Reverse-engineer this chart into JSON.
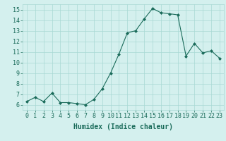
{
  "x": [
    0,
    1,
    2,
    3,
    4,
    5,
    6,
    7,
    8,
    9,
    10,
    11,
    12,
    13,
    14,
    15,
    16,
    17,
    18,
    19,
    20,
    21,
    22,
    23
  ],
  "y": [
    6.3,
    6.7,
    6.3,
    7.1,
    6.2,
    6.2,
    6.1,
    6.0,
    6.5,
    7.5,
    9.0,
    10.8,
    12.8,
    13.0,
    14.1,
    15.1,
    14.7,
    14.6,
    14.5,
    10.6,
    11.8,
    10.9,
    11.1,
    10.4
  ],
  "xlabel": "Humidex (Indice chaleur)",
  "ylim": [
    5.5,
    15.5
  ],
  "xlim": [
    -0.5,
    23.5
  ],
  "yticks": [
    6,
    7,
    8,
    9,
    10,
    11,
    12,
    13,
    14,
    15
  ],
  "xticks": [
    0,
    1,
    2,
    3,
    4,
    5,
    6,
    7,
    8,
    9,
    10,
    11,
    12,
    13,
    14,
    15,
    16,
    17,
    18,
    19,
    20,
    21,
    22,
    23
  ],
  "line_color": "#1a6b5a",
  "marker_color": "#1a6b5a",
  "bg_color": "#d4f0ee",
  "grid_color": "#a8d8d4",
  "tick_label_color": "#1a6b5a",
  "xlabel_color": "#1a6b5a",
  "xlabel_fontsize": 7,
  "tick_fontsize": 6
}
